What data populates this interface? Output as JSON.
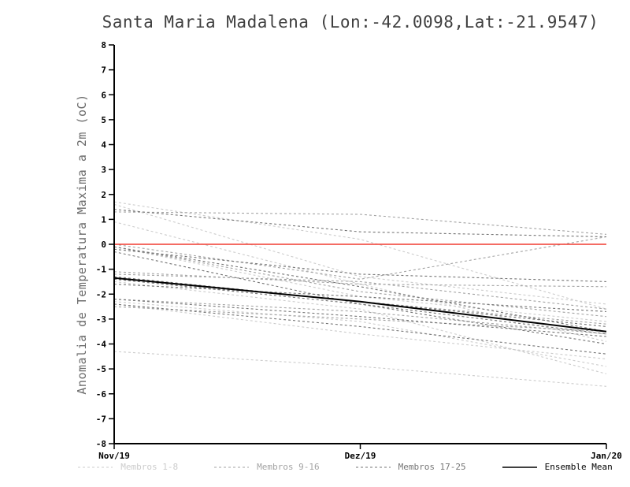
{
  "chart_data": {
    "type": "line",
    "title": "Santa Maria Madalena (Lon:-42.0098,Lat:-21.9547)",
    "ylabel": "Anomalia de Temperatura Maxima a 2m (oC)",
    "xlabel": "",
    "ylim": [
      -8,
      8
    ],
    "ytick_step": 1,
    "ytick_labels": [
      "8",
      "7",
      "6",
      "5",
      "4",
      "3",
      "2",
      "1",
      "0",
      "-1",
      "-2",
      "-3",
      "-4",
      "-5",
      "-6",
      "-7",
      "-8"
    ],
    "x_labels": [
      "Nov/19",
      "Dez/19",
      "Jan/20"
    ],
    "grid": false,
    "legend_position": "bottom",
    "zero_line": {
      "value": 0,
      "color": "#f03c30"
    },
    "axis_color": "#000000",
    "groups": [
      {
        "name": "Membros 1-8",
        "color": "#cccccc",
        "dash": "3 3",
        "series": [
          [
            1.7,
            0.2,
            -2.6
          ],
          [
            1.6,
            -1.3,
            -2.4
          ],
          [
            0.9,
            -1.6,
            -3.9
          ],
          [
            -0.1,
            -2.1,
            -3.1
          ],
          [
            -1.5,
            -2.6,
            -5.2
          ],
          [
            -2.3,
            -3.1,
            -4.9
          ],
          [
            -2.4,
            -3.6,
            -4.6
          ],
          [
            -4.3,
            -4.9,
            -5.7
          ]
        ]
      },
      {
        "name": "Membros 9-16",
        "color": "#a3a3a3",
        "dash": "3 3",
        "series": [
          [
            1.3,
            1.2,
            0.4
          ],
          [
            0.0,
            -1.4,
            0.3
          ],
          [
            -0.1,
            -1.9,
            -2.9
          ],
          [
            -1.1,
            -1.6,
            -1.7
          ],
          [
            -1.4,
            -2.3,
            -3.2
          ],
          [
            -2.2,
            -2.7,
            -3.6
          ],
          [
            -2.5,
            -3.0,
            -3.5
          ],
          [
            -1.2,
            -1.5,
            -2.6
          ]
        ]
      },
      {
        "name": "Membros 17-25",
        "color": "#757575",
        "dash": "3 3",
        "series": [
          [
            1.4,
            0.5,
            0.3
          ],
          [
            -0.2,
            -1.2,
            -1.5
          ],
          [
            -0.3,
            -2.4,
            -4.0
          ],
          [
            -1.3,
            -2.3,
            -3.3
          ],
          [
            -1.6,
            -2.1,
            -2.7
          ],
          [
            -2.2,
            -2.9,
            -3.7
          ],
          [
            -2.4,
            -3.3,
            -4.4
          ],
          [
            -0.1,
            -1.7,
            -3.5
          ],
          [
            -1.4,
            -2.4,
            -3.6
          ]
        ]
      }
    ],
    "mean": {
      "name": "Ensemble Mean",
      "color": "#000000",
      "values": [
        -1.35,
        -2.3,
        -3.5
      ]
    }
  }
}
